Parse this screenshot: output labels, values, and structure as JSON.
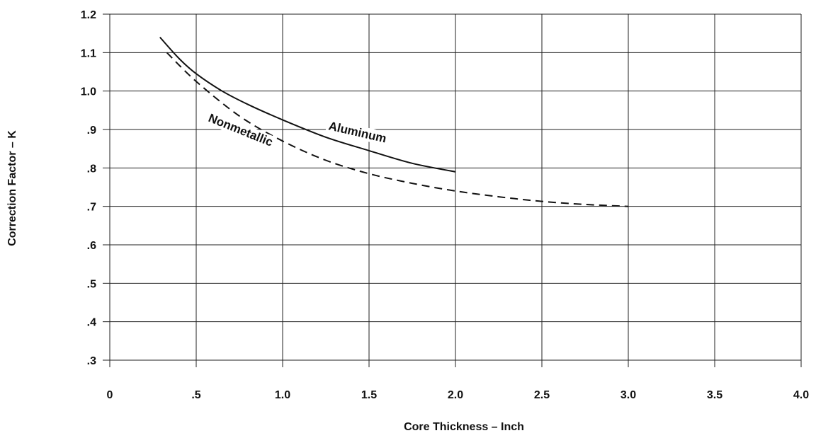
{
  "chart_data": {
    "type": "line",
    "xlabel": "Core Thickness – Inch",
    "ylabel": "Correction Factor – K",
    "xlim": [
      0,
      4.0
    ],
    "ylim": [
      0.3,
      1.2
    ],
    "x_ticks": [
      {
        "value": 0,
        "label": "0"
      },
      {
        "value": 0.5,
        "label": ".5"
      },
      {
        "value": 1.0,
        "label": "1.0"
      },
      {
        "value": 1.5,
        "label": "1.5"
      },
      {
        "value": 2.0,
        "label": "2.0"
      },
      {
        "value": 2.5,
        "label": "2.5"
      },
      {
        "value": 3.0,
        "label": "3.0"
      },
      {
        "value": 3.5,
        "label": "3.5"
      },
      {
        "value": 4.0,
        "label": "4.0"
      }
    ],
    "y_ticks": [
      {
        "value": 0.3,
        "label": ".3"
      },
      {
        "value": 0.4,
        "label": ".4"
      },
      {
        "value": 0.5,
        "label": ".5"
      },
      {
        "value": 0.6,
        "label": ".6"
      },
      {
        "value": 0.7,
        "label": ".7"
      },
      {
        "value": 0.8,
        "label": ".8"
      },
      {
        "value": 0.9,
        "label": ".9"
      },
      {
        "value": 1.0,
        "label": "1.0"
      },
      {
        "value": 1.1,
        "label": "1.1"
      },
      {
        "value": 1.2,
        "label": "1.2"
      }
    ],
    "grid": true,
    "series": [
      {
        "name": "Aluminum",
        "line_style": "solid",
        "color": "#111111",
        "x": [
          0.29,
          0.4,
          0.5,
          0.65,
          0.8,
          1.0,
          1.25,
          1.5,
          1.75,
          2.0
        ],
        "y": [
          1.14,
          1.085,
          1.045,
          1.0,
          0.965,
          0.925,
          0.88,
          0.845,
          0.812,
          0.79
        ]
      },
      {
        "name": "Nonmetallic",
        "line_style": "dashed",
        "color": "#111111",
        "x": [
          0.33,
          0.5,
          0.75,
          1.0,
          1.25,
          1.5,
          1.75,
          2.0,
          2.25,
          2.5,
          2.75,
          3.0
        ],
        "y": [
          1.1,
          1.025,
          0.935,
          0.87,
          0.82,
          0.785,
          0.76,
          0.74,
          0.725,
          0.713,
          0.705,
          0.7
        ]
      }
    ]
  }
}
